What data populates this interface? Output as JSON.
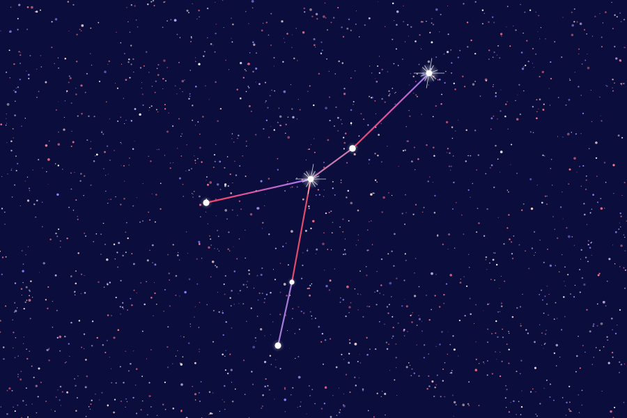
{
  "scene": {
    "background_color": "#0b0d3c",
    "star_colors": [
      "#ffffff",
      "#ffd8d8",
      "#ff7b8a",
      "#c9b8ff",
      "#8f8cff",
      "#e36b8a"
    ],
    "line_gradient_colors": [
      "#ff3d5a",
      "#9f7bff"
    ],
    "primary_star_color": "#ffffff",
    "background_star_count": 1900
  }
}
